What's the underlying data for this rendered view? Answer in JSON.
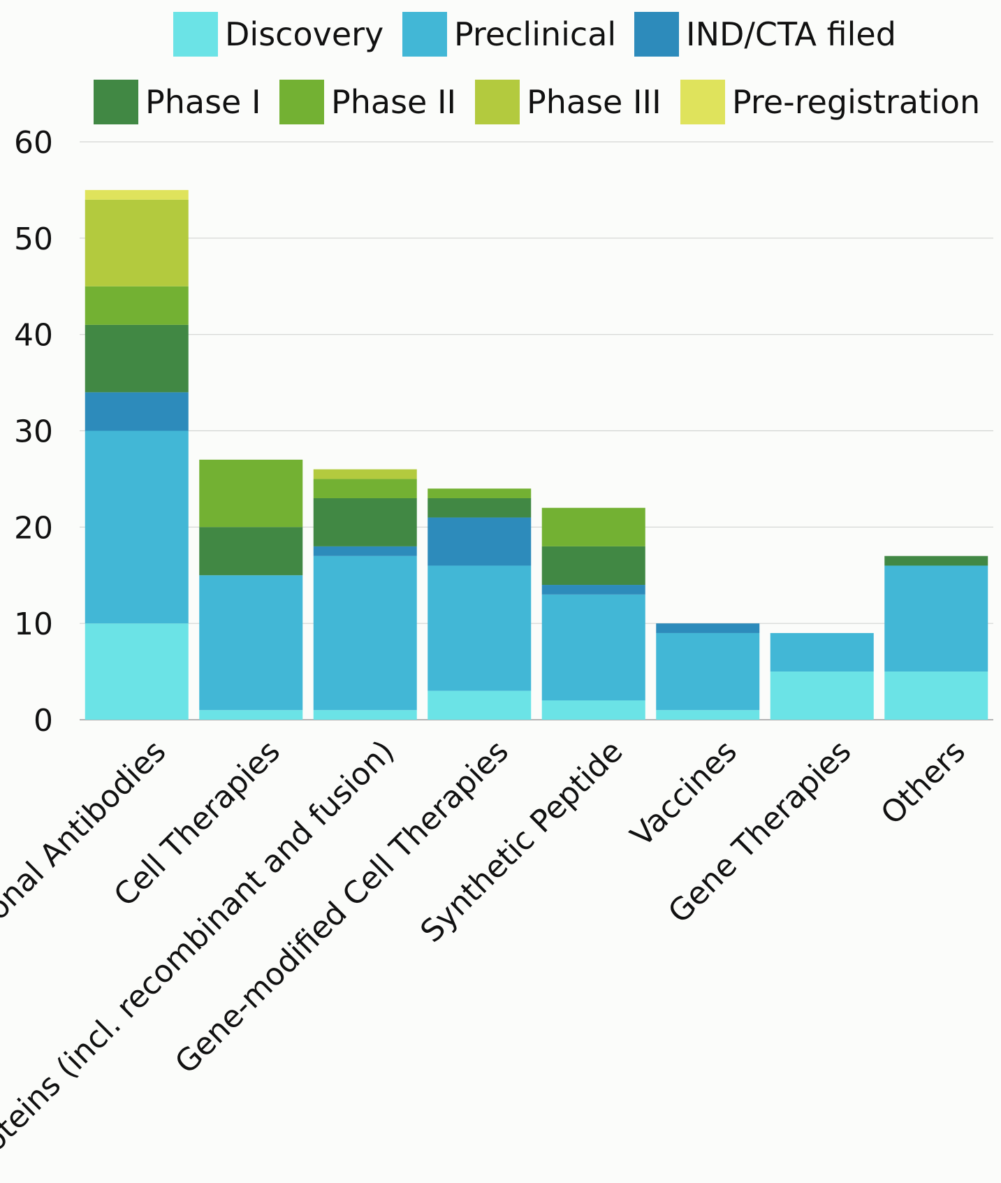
{
  "chart_data": {
    "type": "bar",
    "stacked": true,
    "title": "",
    "xlabel": "",
    "ylabel": "",
    "ylim": [
      0,
      60
    ],
    "yticks": [
      0,
      10,
      20,
      30,
      40,
      50,
      60
    ],
    "grid": true,
    "legend_position": "top",
    "categories": [
      "Monoclonal Antibodies",
      "Cell Therapies",
      "Proteins (incl. recombinant and fusion)",
      "Gene-modified Cell Therapies",
      "Synthetic Peptide",
      "Vaccines",
      "Gene Therapies",
      "Others"
    ],
    "series": [
      {
        "name": "Discovery",
        "color": "#6be3e6",
        "values": [
          10,
          1,
          1,
          3,
          2,
          1,
          5,
          5
        ]
      },
      {
        "name": "Preclinical",
        "color": "#42b7d6",
        "values": [
          20,
          14,
          16,
          13,
          11,
          8,
          4,
          11
        ]
      },
      {
        "name": "IND/CTA filed",
        "color": "#2d8bbb",
        "values": [
          4,
          0,
          1,
          5,
          1,
          1,
          0,
          0
        ]
      },
      {
        "name": "Phase I",
        "color": "#418844",
        "values": [
          7,
          5,
          5,
          2,
          4,
          0,
          0,
          1
        ]
      },
      {
        "name": "Phase II",
        "color": "#73b133",
        "values": [
          4,
          7,
          2,
          1,
          4,
          0,
          0,
          0
        ]
      },
      {
        "name": "Phase III",
        "color": "#b3ca3e",
        "values": [
          9,
          0,
          1,
          0,
          0,
          0,
          0,
          0
        ]
      },
      {
        "name": "Pre-registration",
        "color": "#dfe35c",
        "values": [
          1,
          0,
          0,
          0,
          0,
          0,
          0,
          0
        ]
      }
    ]
  }
}
